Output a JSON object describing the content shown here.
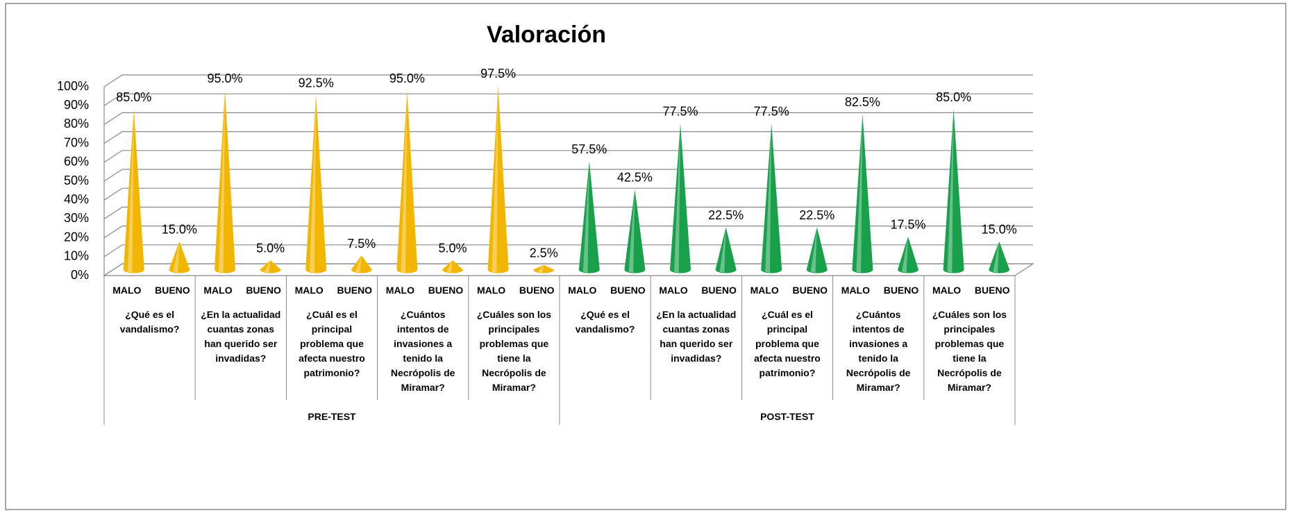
{
  "chart_data": {
    "type": "cone",
    "title": "Valoración",
    "categories": [
      "MALO",
      "BUENO",
      "MALO",
      "BUENO",
      "MALO",
      "BUENO",
      "MALO",
      "BUENO",
      "MALO",
      "BUENO",
      "MALO",
      "BUENO",
      "MALO",
      "BUENO",
      "MALO",
      "BUENO",
      "MALO",
      "BUENO",
      "MALO",
      "BUENO"
    ],
    "questions": [
      "¿Qué es el vandalismo?",
      "¿En la actualidad cuantas zonas han querido ser invadidas?",
      "¿Cuál es el principal problema que afecta nuestro patrimonio?",
      "¿Cuántos intentos de invasiones a tenido la Necrópolis de Miramar?",
      "¿Cuáles son los principales problemas que tiene la Necrópolis de Miramar?",
      "¿Qué es el vandalismo?",
      "¿En la actualidad cuantas zonas han querido ser invadidas?",
      "¿Cuál es el principal problema que afecta nuestro patrimonio?",
      "¿Cuántos intentos de invasiones a tenido la Necrópolis de Miramar?",
      "¿Cuáles son los principales problemas que tiene la Necrópolis de Miramar?"
    ],
    "groups": [
      {
        "label": "PRE-TEST",
        "color": "#f2b600"
      },
      {
        "label": "POST-TEST",
        "color": "#18a04a"
      }
    ],
    "values": [
      85,
      15,
      95,
      5,
      92.5,
      7.5,
      95,
      5,
      97.5,
      2.5,
      57.5,
      42.5,
      77.5,
      22.5,
      77.5,
      22.5,
      82.5,
      17.5,
      85,
      15
    ],
    "value_labels": [
      "85.0%",
      "15.0%",
      "95.0%",
      "5.0%",
      "92.5%",
      "7.5%",
      "95.0%",
      "5.0%",
      "97.5%",
      "2.5%",
      "57.5%",
      "42.5%",
      "77.5%",
      "22.5%",
      "77.5%",
      "22.5%",
      "82.5%",
      "17.5%",
      "85.0%",
      "15.0%"
    ],
    "ylim": [
      0,
      100
    ],
    "yticks": [
      {
        "value": 0,
        "label": "0%"
      },
      {
        "value": 10,
        "label": "10%"
      },
      {
        "value": 20,
        "label": "20%"
      },
      {
        "value": 30,
        "label": "30%"
      },
      {
        "value": 40,
        "label": "40%"
      },
      {
        "value": 50,
        "label": "50%"
      },
      {
        "value": 60,
        "label": "60%"
      },
      {
        "value": 70,
        "label": "70%"
      },
      {
        "value": 80,
        "label": "80%"
      },
      {
        "value": 90,
        "label": "90%"
      },
      {
        "value": 100,
        "label": "100%"
      }
    ],
    "grid": true
  }
}
